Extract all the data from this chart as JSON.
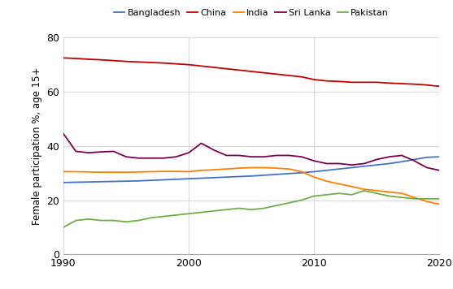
{
  "title": "",
  "ylabel": "Female participation %, age 15+",
  "xlabel": "",
  "xlim": [
    1990,
    2020
  ],
  "ylim": [
    0,
    80
  ],
  "yticks": [
    0,
    20,
    40,
    60,
    80
  ],
  "xticks": [
    1990,
    2000,
    2010,
    2020
  ],
  "xtick_labels": [
    "1990",
    "2000",
    "2010",
    "2020"
  ],
  "background_color": "#ffffff",
  "grid_color": "#d9d9d9",
  "series": [
    {
      "label": "Bangladesh",
      "color": "#4472C4",
      "years": [
        1990,
        1991,
        1992,
        1993,
        1994,
        1995,
        1996,
        1997,
        1998,
        1999,
        2000,
        2001,
        2002,
        2003,
        2004,
        2005,
        2006,
        2007,
        2008,
        2009,
        2010,
        2011,
        2012,
        2013,
        2014,
        2015,
        2016,
        2017,
        2018,
        2019,
        2020
      ],
      "values": [
        26.5,
        26.6,
        26.7,
        26.8,
        26.9,
        27.0,
        27.1,
        27.3,
        27.5,
        27.7,
        27.9,
        28.1,
        28.3,
        28.5,
        28.7,
        28.9,
        29.2,
        29.5,
        29.8,
        30.1,
        30.5,
        31.0,
        31.5,
        32.0,
        32.5,
        33.0,
        33.5,
        34.2,
        35.0,
        35.8,
        36.0
      ]
    },
    {
      "label": "China",
      "color": "#C00000",
      "years": [
        1990,
        1991,
        1992,
        1993,
        1994,
        1995,
        1996,
        1997,
        1998,
        1999,
        2000,
        2001,
        2002,
        2003,
        2004,
        2005,
        2006,
        2007,
        2008,
        2009,
        2010,
        2011,
        2012,
        2013,
        2014,
        2015,
        2016,
        2017,
        2018,
        2019,
        2020
      ],
      "values": [
        72.5,
        72.3,
        72.0,
        71.8,
        71.5,
        71.2,
        71.0,
        70.8,
        70.6,
        70.3,
        70.0,
        69.5,
        69.0,
        68.5,
        68.0,
        67.5,
        67.0,
        66.5,
        66.0,
        65.5,
        64.5,
        64.0,
        63.8,
        63.5,
        63.5,
        63.5,
        63.2,
        63.0,
        62.8,
        62.5,
        62.0
      ]
    },
    {
      "label": "India",
      "color": "#FF7F00",
      "years": [
        1990,
        1991,
        1992,
        1993,
        1994,
        1995,
        1996,
        1997,
        1998,
        1999,
        2000,
        2001,
        2002,
        2003,
        2004,
        2005,
        2006,
        2007,
        2008,
        2009,
        2010,
        2011,
        2012,
        2013,
        2014,
        2015,
        2016,
        2017,
        2018,
        2019,
        2020
      ],
      "values": [
        30.5,
        30.5,
        30.4,
        30.3,
        30.3,
        30.3,
        30.4,
        30.5,
        30.6,
        30.6,
        30.5,
        31.0,
        31.2,
        31.5,
        31.8,
        32.0,
        32.0,
        31.8,
        31.5,
        30.5,
        28.5,
        27.0,
        26.0,
        25.0,
        24.0,
        23.5,
        23.0,
        22.5,
        21.0,
        19.5,
        18.5
      ]
    },
    {
      "label": "Sri Lanka",
      "color": "#7B0050",
      "years": [
        1990,
        1991,
        1992,
        1993,
        1994,
        1995,
        1996,
        1997,
        1998,
        1999,
        2000,
        2001,
        2002,
        2003,
        2004,
        2005,
        2006,
        2007,
        2008,
        2009,
        2010,
        2011,
        2012,
        2013,
        2014,
        2015,
        2016,
        2017,
        2018,
        2019,
        2020
      ],
      "values": [
        44.5,
        38.0,
        37.5,
        37.8,
        38.0,
        36.0,
        35.5,
        35.5,
        35.5,
        36.0,
        37.5,
        41.0,
        38.5,
        36.5,
        36.5,
        36.0,
        36.0,
        36.5,
        36.5,
        36.0,
        34.5,
        33.5,
        33.5,
        33.0,
        33.5,
        35.0,
        36.0,
        36.5,
        34.5,
        32.0,
        31.0
      ]
    },
    {
      "label": "Pakistan",
      "color": "#70AD47",
      "years": [
        1990,
        1991,
        1992,
        1993,
        1994,
        1995,
        1996,
        1997,
        1998,
        1999,
        2000,
        2001,
        2002,
        2003,
        2004,
        2005,
        2006,
        2007,
        2008,
        2009,
        2010,
        2011,
        2012,
        2013,
        2014,
        2015,
        2016,
        2017,
        2018,
        2019,
        2020
      ],
      "values": [
        10.0,
        12.5,
        13.0,
        12.5,
        12.5,
        12.0,
        12.5,
        13.5,
        14.0,
        14.5,
        15.0,
        15.5,
        16.0,
        16.5,
        17.0,
        16.5,
        17.0,
        18.0,
        19.0,
        20.0,
        21.5,
        22.0,
        22.5,
        22.0,
        23.5,
        22.5,
        21.5,
        21.0,
        20.5,
        20.5,
        20.5
      ]
    }
  ]
}
